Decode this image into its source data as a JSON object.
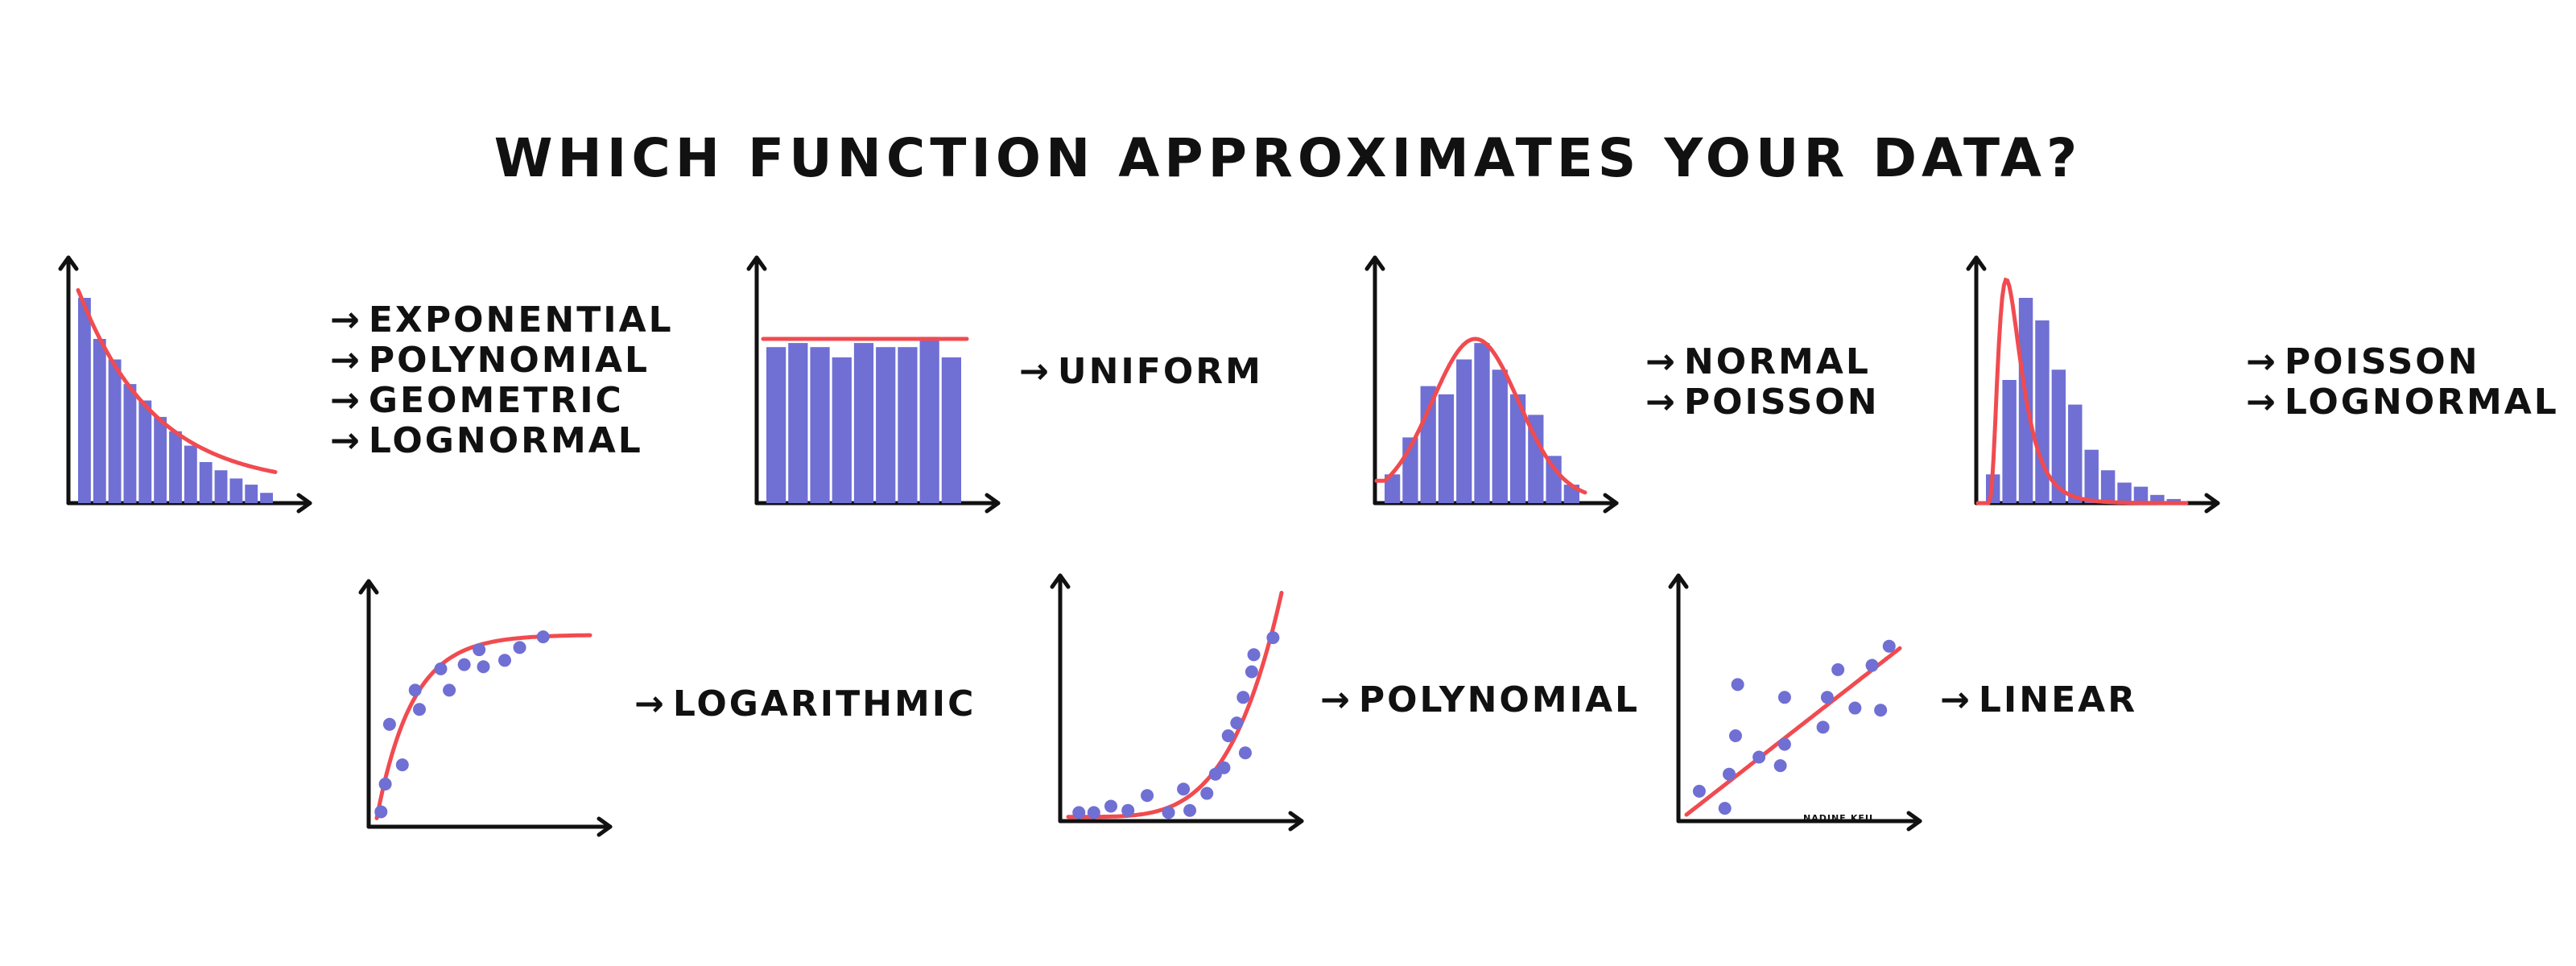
{
  "title": "WHICH FUNCTION APPROXIMATES YOUR DATA?",
  "arrow_glyph": "→",
  "signature": "NADINE.KEIL",
  "colors": {
    "bar": "#6f6fd4",
    "curve": "#f04b50",
    "axis": "#111111"
  },
  "panels": [
    {
      "kind": "histogram",
      "curve": "exponential",
      "bars": [
        1.0,
        0.8,
        0.7,
        0.58,
        0.5,
        0.42,
        0.35,
        0.28,
        0.2,
        0.16,
        0.12,
        0.09,
        0.05
      ],
      "labels": [
        "EXPONENTIAL",
        "POLYNOMIAL",
        "GEOMETRIC",
        "LOGNORMAL"
      ]
    },
    {
      "kind": "histogram",
      "curve": "uniform",
      "bars": [
        0.76,
        0.78,
        0.76,
        0.71,
        0.78,
        0.76,
        0.76,
        0.81,
        0.71
      ],
      "labels": [
        "UNIFORM"
      ]
    },
    {
      "kind": "histogram",
      "curve": "normal",
      "bars": [
        0.14,
        0.32,
        0.57,
        0.53,
        0.7,
        0.78,
        0.65,
        0.53,
        0.43,
        0.23,
        0.09
      ],
      "labels": [
        "NORMAL",
        "POISSON"
      ]
    },
    {
      "kind": "histogram",
      "curve": "lognormal",
      "bars": [
        0.14,
        0.6,
        1.0,
        0.89,
        0.65,
        0.48,
        0.26,
        0.16,
        0.1,
        0.08,
        0.04,
        0.02
      ],
      "labels": [
        "POISSON",
        "LOGNORMAL"
      ]
    },
    {
      "kind": "scatter",
      "curve": "logarithmic",
      "points": [
        [
          0.02,
          0.07
        ],
        [
          0.06,
          0.48
        ],
        [
          0.04,
          0.2
        ],
        [
          0.12,
          0.29
        ],
        [
          0.18,
          0.64
        ],
        [
          0.2,
          0.55
        ],
        [
          0.3,
          0.74
        ],
        [
          0.34,
          0.64
        ],
        [
          0.41,
          0.76
        ],
        [
          0.48,
          0.83
        ],
        [
          0.5,
          0.75
        ],
        [
          0.6,
          0.78
        ],
        [
          0.67,
          0.84
        ],
        [
          0.78,
          0.89
        ]
      ],
      "labels": [
        "LOGARITHMIC"
      ]
    },
    {
      "kind": "scatter",
      "curve": "polynomial",
      "points": [
        [
          0.05,
          0.04
        ],
        [
          0.12,
          0.04
        ],
        [
          0.2,
          0.07
        ],
        [
          0.28,
          0.05
        ],
        [
          0.37,
          0.12
        ],
        [
          0.47,
          0.04
        ],
        [
          0.54,
          0.15
        ],
        [
          0.57,
          0.05
        ],
        [
          0.65,
          0.13
        ],
        [
          0.69,
          0.22
        ],
        [
          0.73,
          0.25
        ],
        [
          0.75,
          0.4
        ],
        [
          0.79,
          0.46
        ],
        [
          0.83,
          0.32
        ],
        [
          0.82,
          0.58
        ],
        [
          0.86,
          0.7
        ],
        [
          0.87,
          0.78
        ],
        [
          0.96,
          0.86
        ]
      ],
      "labels": [
        "POLYNOMIAL"
      ]
    },
    {
      "kind": "scatter",
      "curve": "linear",
      "points": [
        [
          0.06,
          0.14
        ],
        [
          0.18,
          0.06
        ],
        [
          0.2,
          0.22
        ],
        [
          0.23,
          0.4
        ],
        [
          0.24,
          0.64
        ],
        [
          0.34,
          0.3
        ],
        [
          0.44,
          0.26
        ],
        [
          0.46,
          0.36
        ],
        [
          0.46,
          0.58
        ],
        [
          0.64,
          0.44
        ],
        [
          0.66,
          0.58
        ],
        [
          0.71,
          0.71
        ],
        [
          0.79,
          0.53
        ],
        [
          0.87,
          0.73
        ],
        [
          0.91,
          0.52
        ],
        [
          0.95,
          0.82
        ]
      ],
      "labels": [
        "LINEAR"
      ]
    }
  ]
}
